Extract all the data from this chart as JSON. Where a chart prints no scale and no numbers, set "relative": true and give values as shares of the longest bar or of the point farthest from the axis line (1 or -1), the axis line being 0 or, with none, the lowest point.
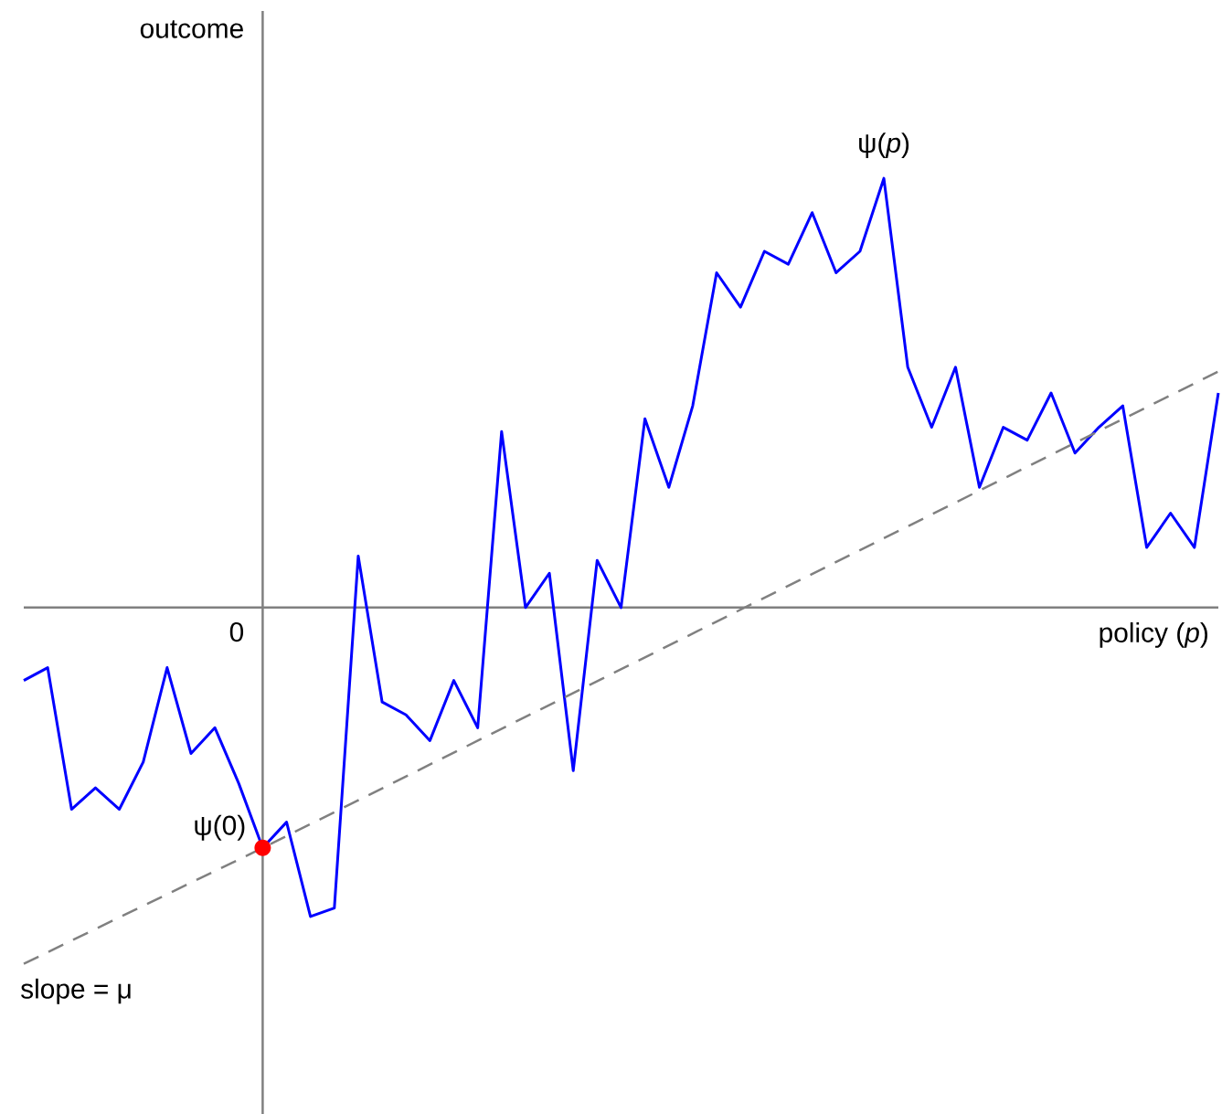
{
  "chart_data": {
    "type": "line",
    "relative": true,
    "xlabel": "policy (*p*)",
    "categories": [
      null,
      null,
      null,
      null,
      null,
      null,
      null,
      null,
      null,
      null,
      null,
      null,
      null,
      null,
      null,
      null,
      null,
      null,
      null,
      null,
      null,
      null,
      null,
      null,
      null,
      null,
      null,
      null,
      null,
      null,
      null,
      null,
      null,
      null,
      null,
      null,
      null,
      null,
      null,
      null,
      null,
      null,
      null,
      null,
      null,
      null,
      null,
      null,
      null,
      null,
      null
    ],
    "annotations": [
      "ψ(*p*)",
      "ψ(0)",
      "0",
      "slope = μ",
      "outcome"
    ],
    "series": [
      {
        "color": "#0000ff",
        "values": [
          -0.17,
          -0.14,
          -0.47,
          -0.42,
          -0.47,
          -0.36,
          -0.14,
          -0.34,
          -0.28,
          -0.41,
          -0.56,
          -0.5,
          -0.72,
          -0.7,
          0.12,
          -0.22,
          -0.25,
          -0.31,
          -0.17,
          -0.28,
          0.41,
          0,
          0.08,
          -0.38,
          0.11,
          0,
          0.44,
          0.28,
          0.47,
          0.78,
          0.7,
          0.83,
          0.8,
          0.92,
          0.78,
          0.83,
          1,
          0.56,
          0.42,
          0.56,
          0.28,
          0.42,
          0.39,
          0.5,
          0.36,
          0.42,
          0.47,
          0.14,
          0.22,
          0.14,
          0.5
        ]
      },
      {
        "type": "line",
        "color": "#808080",
        "line_style": "dashed",
        "values": [
          -0.83,
          null,
          null,
          null,
          null,
          null,
          null,
          null,
          null,
          null,
          -0.56,
          null,
          null,
          null,
          null,
          null,
          null,
          null,
          null,
          null,
          null,
          null,
          null,
          null,
          null,
          null,
          null,
          null,
          null,
          null,
          null,
          null,
          null,
          null,
          null,
          null,
          null,
          null,
          null,
          null,
          null,
          null,
          null,
          null,
          null,
          null,
          null,
          null,
          null,
          null,
          0.55
        ]
      }
    ]
  }
}
